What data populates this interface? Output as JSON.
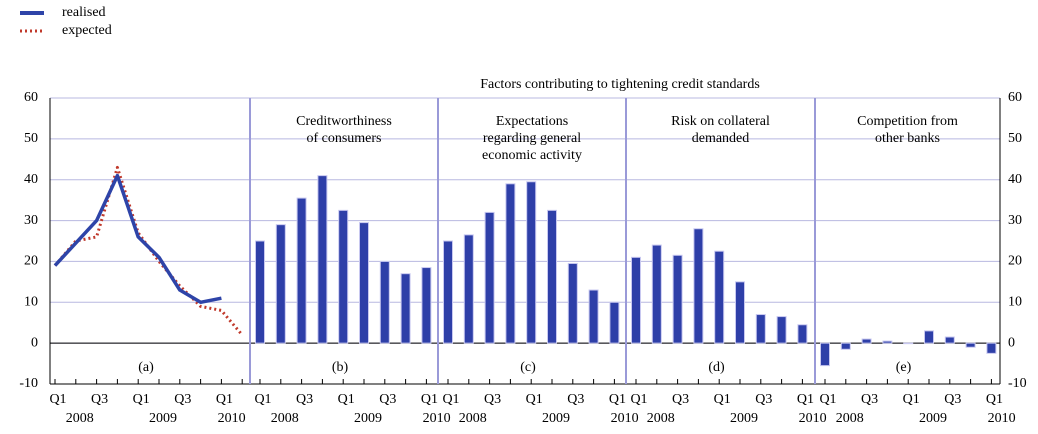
{
  "chart_data": {
    "type": "bar",
    "title": "Factors contributing to tightening credit standards",
    "ylim": [
      -10,
      60
    ],
    "yticks": [
      -10,
      0,
      10,
      20,
      30,
      40,
      50,
      60
    ],
    "panels": [
      {
        "type": "line",
        "label": "(a)",
        "categories": [
          "Q1",
          null,
          "Q3",
          null,
          "Q1",
          null,
          "Q3",
          null,
          "Q1",
          null
        ],
        "years": [
          "2008",
          "2009",
          "2010"
        ],
        "series": [
          {
            "name": "realised",
            "color": "#2e44a8",
            "values": [
              19,
              24.5,
              30,
              41,
              26,
              21,
              13,
              10,
              11,
              null
            ]
          },
          {
            "name": "expected",
            "color": "#c0392b",
            "values": [
              19,
              25,
              26,
              43,
              27,
              20,
              14,
              9,
              8,
              2
            ]
          }
        ]
      },
      {
        "type": "bar",
        "label": "(b)",
        "name": [
          "Creditworthiness",
          "of consumers"
        ],
        "color": "#2e3fa8",
        "categories": [
          "Q1",
          null,
          "Q3",
          null,
          "Q1",
          null,
          "Q3",
          null,
          "Q1"
        ],
        "years": [
          "2008",
          "2009",
          "2010"
        ],
        "values": [
          25,
          29,
          35.5,
          41,
          32.5,
          29.5,
          20,
          17,
          18.5
        ]
      },
      {
        "type": "bar",
        "label": "(c)",
        "name": [
          "Expectations",
          "regarding general",
          "economic activity"
        ],
        "color": "#2e3fa8",
        "categories": [
          "Q1",
          null,
          "Q3",
          null,
          "Q1",
          null,
          "Q3",
          null,
          "Q1"
        ],
        "years": [
          "2008",
          "2009",
          "2010"
        ],
        "values": [
          25,
          26.5,
          32,
          39,
          39.5,
          32.5,
          19.5,
          13,
          10
        ]
      },
      {
        "type": "bar",
        "label": "(d)",
        "name": [
          "Risk on collateral",
          "demanded"
        ],
        "color": "#2e3fa8",
        "categories": [
          "Q1",
          null,
          "Q3",
          null,
          "Q1",
          null,
          "Q3",
          null,
          "Q1"
        ],
        "years": [
          "2008",
          "2009",
          "2010"
        ],
        "values": [
          21,
          24,
          21.5,
          28,
          22.5,
          15,
          7,
          6.5,
          4.5
        ]
      },
      {
        "type": "bar",
        "label": "(e)",
        "name": [
          "Competition from",
          "other banks"
        ],
        "color": "#2e3fa8",
        "categories": [
          "Q1",
          null,
          "Q3",
          null,
          "Q1",
          null,
          "Q3",
          null,
          "Q1"
        ],
        "years": [
          "2008",
          "2009",
          "2010"
        ],
        "values": [
          -5.5,
          -1.5,
          1,
          0.5,
          0,
          3,
          1.5,
          -1,
          -2.5
        ]
      }
    ]
  }
}
